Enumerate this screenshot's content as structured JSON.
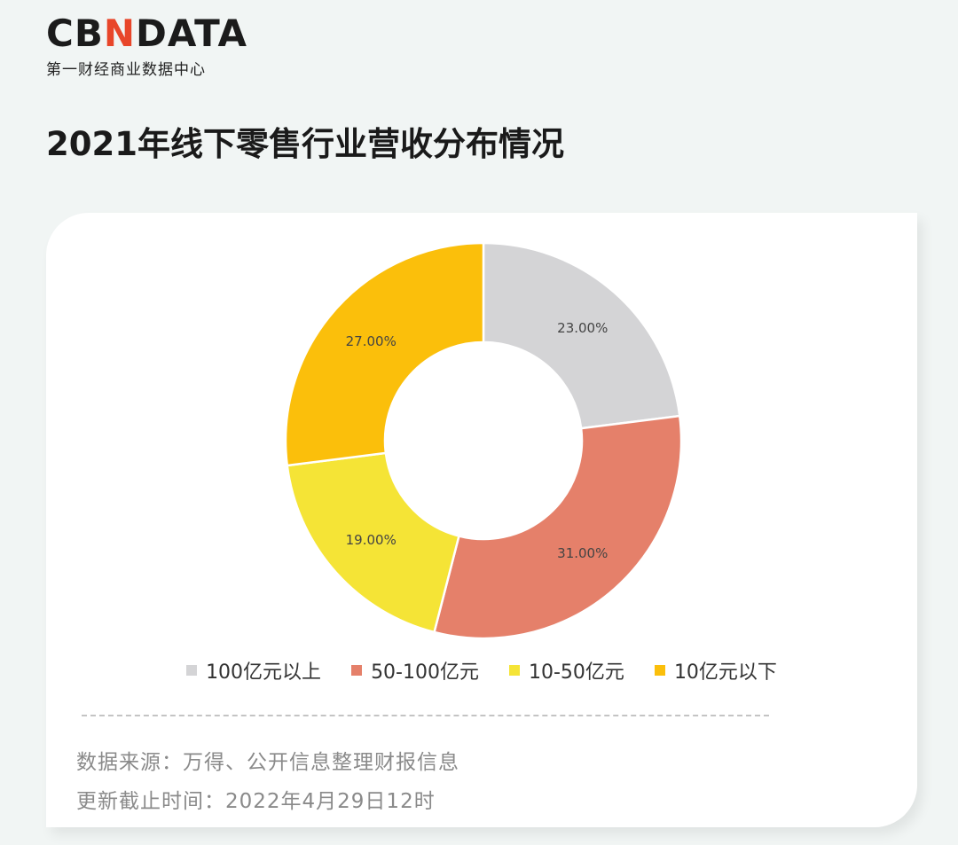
{
  "brand": {
    "logo_left": "CB",
    "logo_accent": "N",
    "logo_right": "DATA",
    "subtitle": "第一财经商业数据中心"
  },
  "title": "2021年线下零售行业营收分布情况",
  "chart_data": {
    "type": "pie",
    "style": "donut",
    "categories": [
      "100亿元以上",
      "50-100亿元",
      "10-50亿元",
      "10亿元以下"
    ],
    "values": [
      23,
      31,
      19,
      27
    ],
    "labels": [
      "23.00%",
      "31.00%",
      "19.00%",
      "27.00%"
    ],
    "colors": [
      "#d4d4d6",
      "#e5806a",
      "#f5e436",
      "#fbbf0b"
    ],
    "legend_position": "bottom"
  },
  "footnotes": {
    "source": "数据来源：万得、公开信息整理财报信息",
    "updated": "更新截止时间：2022年4月29日12时"
  }
}
